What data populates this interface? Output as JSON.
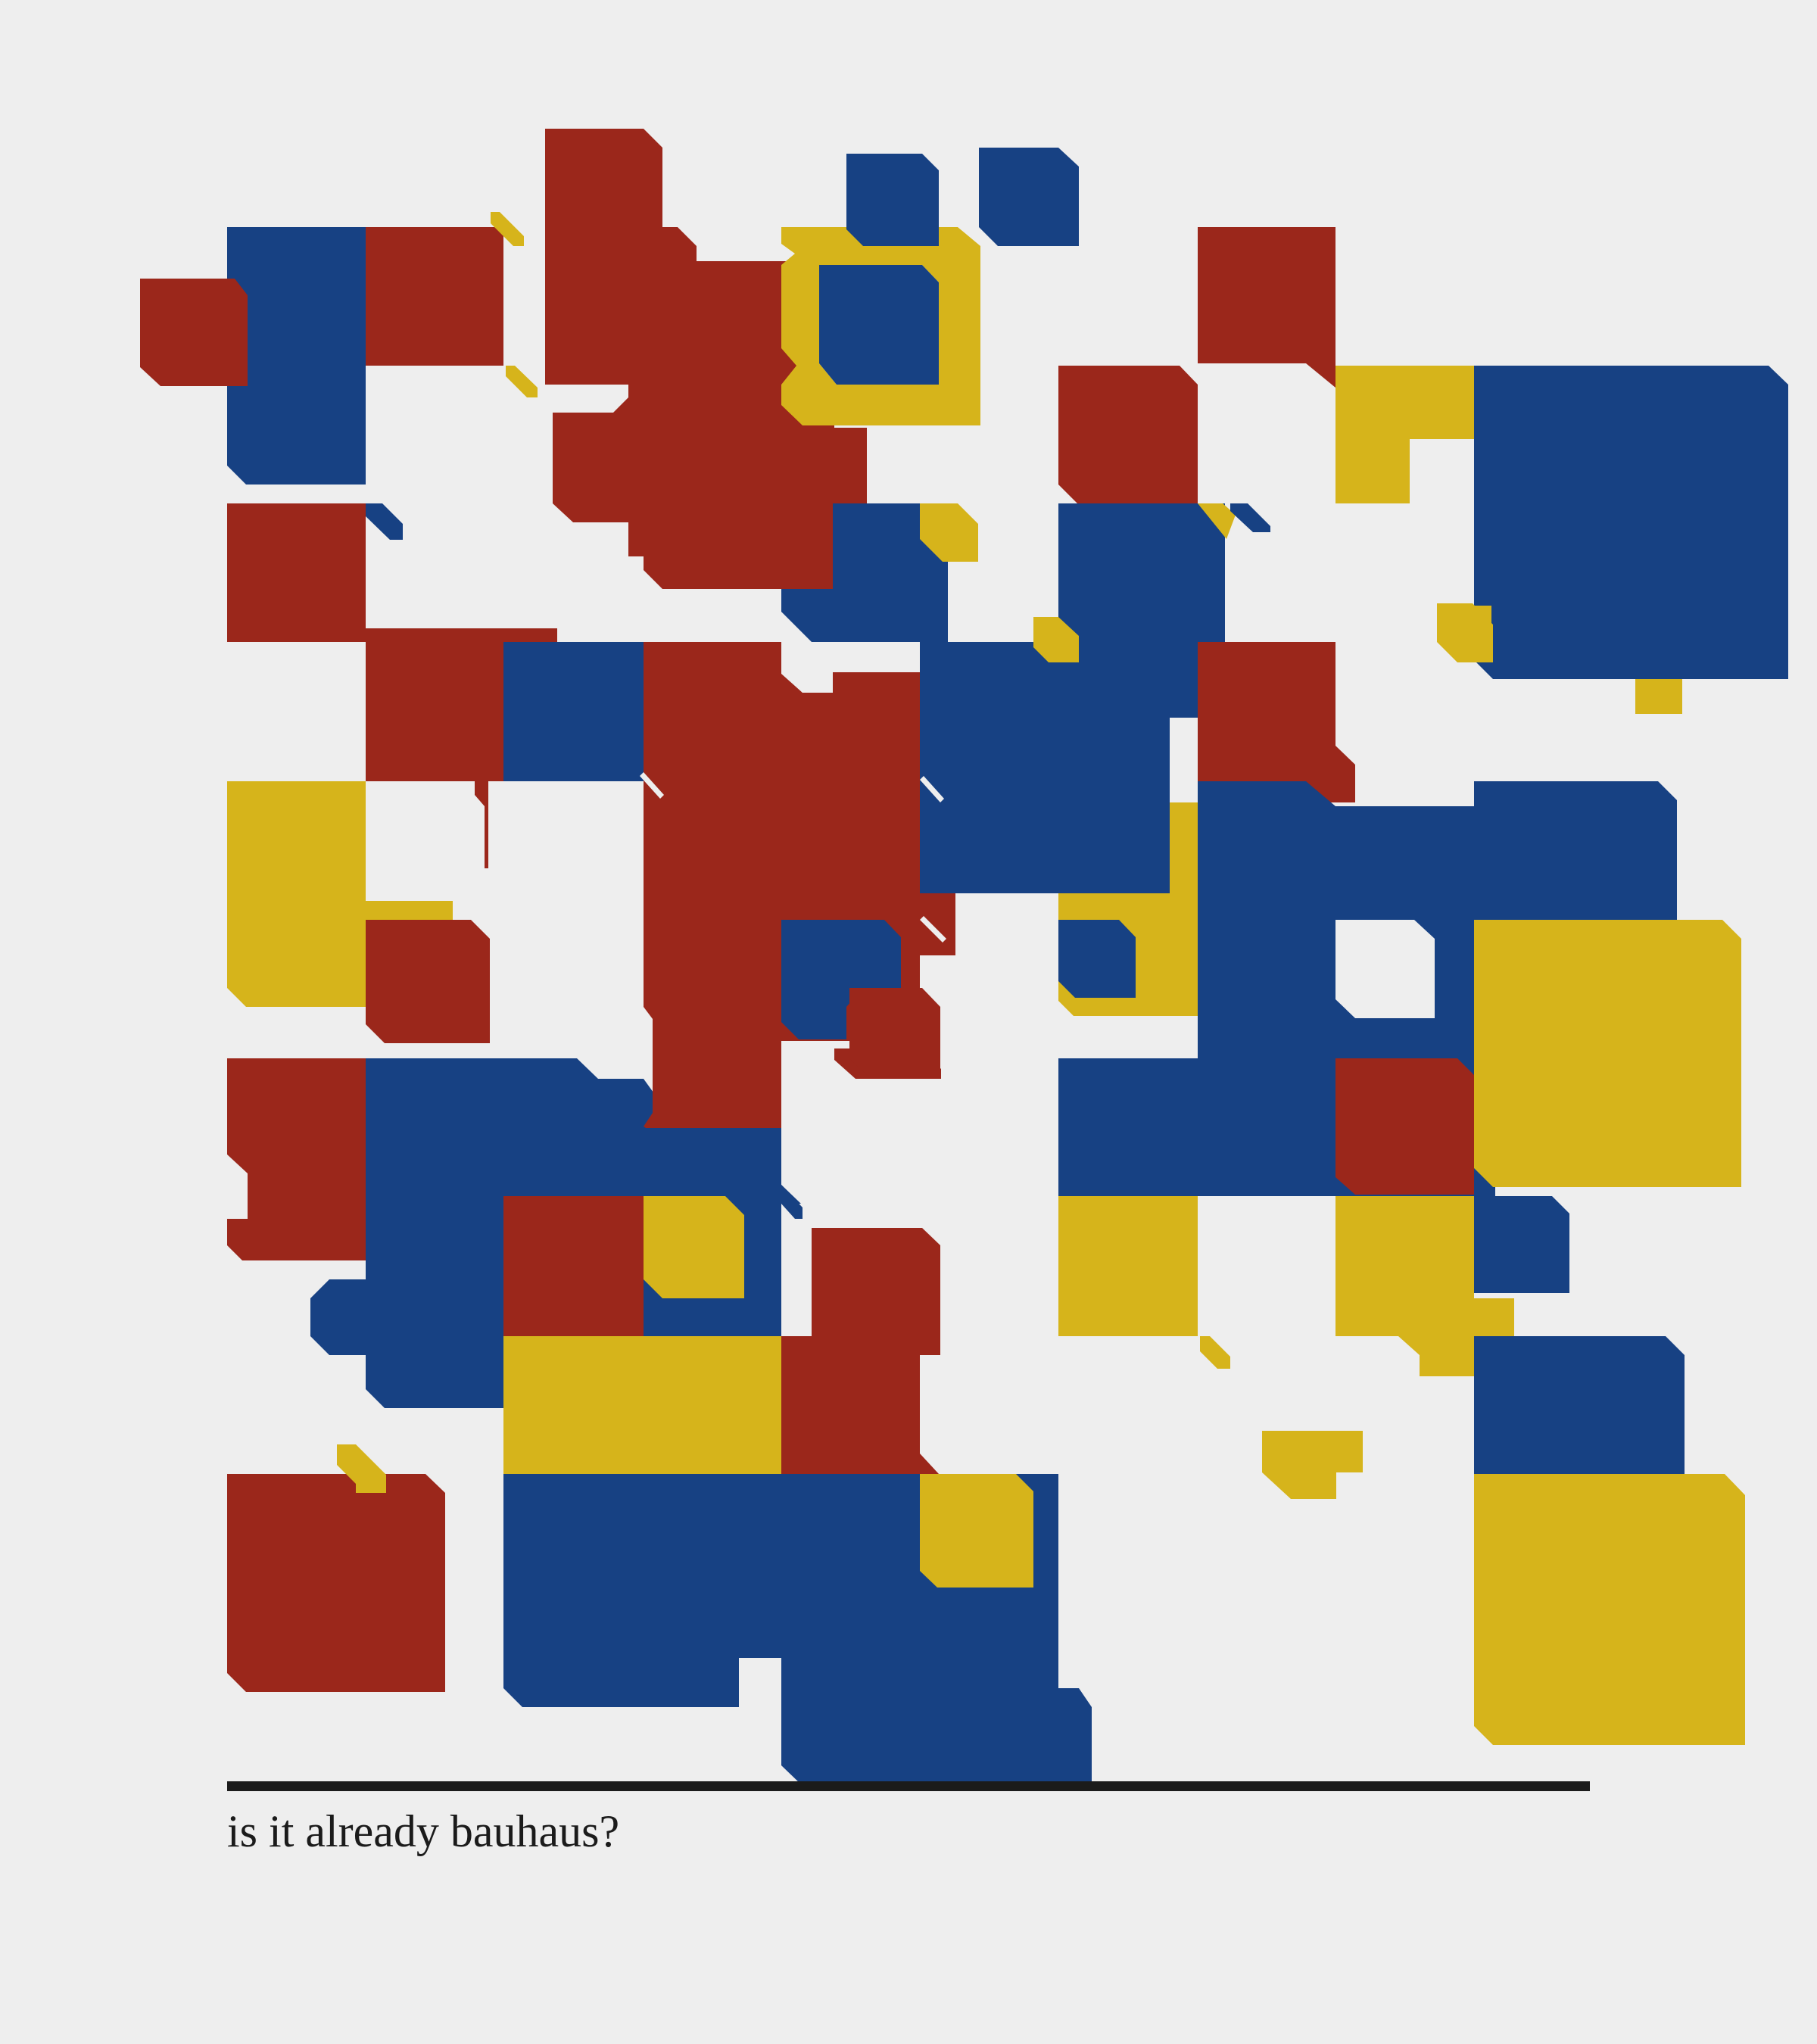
{
  "caption": "is it already bauhaus?",
  "colors": {
    "background": "#eeeeee",
    "red": "#9b271b",
    "blue": "#174183",
    "yellow": "#d6b41b",
    "ink": "#1b1b1b"
  }
}
